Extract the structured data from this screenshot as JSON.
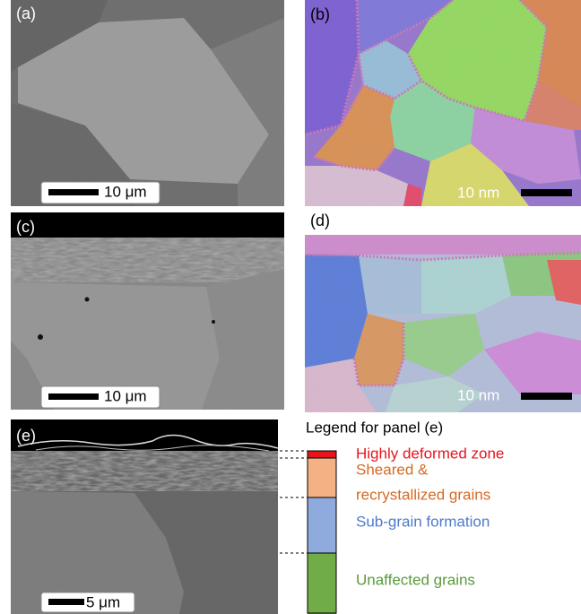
{
  "panels": [
    {
      "label": "(a)",
      "scale_bar": "10 μm"
    },
    {
      "label": "(b)",
      "scale_bar": "10 nm"
    },
    {
      "label": "(c)",
      "scale_bar": "10 μm"
    },
    {
      "label": "(d)",
      "scale_bar": "10 nm"
    },
    {
      "label": "(e)",
      "scale_bar": "5 μm"
    }
  ],
  "legend": {
    "title": "Legend for panel (e)",
    "items": [
      {
        "lines": [
          "Highly deformed zone"
        ],
        "color": "#e8141c",
        "text_color": "#e8141c"
      },
      {
        "lines": [
          "Sheared &",
          "recrystallized grains"
        ],
        "color": "#f4b183",
        "text_color": "#d46a24"
      },
      {
        "lines": [
          "Sub-grain formation"
        ],
        "color": "#8faadc",
        "text_color": "#4f7ac8"
      },
      {
        "lines": [
          "Unaffected grains"
        ],
        "color": "#70ad47",
        "text_color": "#5a9a3a"
      }
    ]
  }
}
